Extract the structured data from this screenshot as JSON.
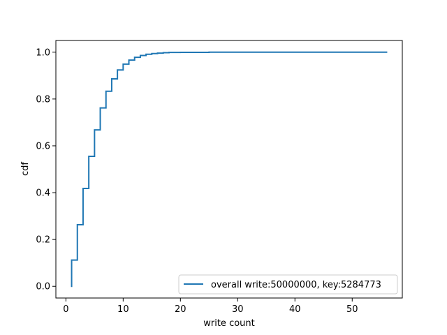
{
  "chart_data": {
    "type": "line",
    "step": "post",
    "xlabel": "write count",
    "ylabel": "cdf",
    "xlim": [
      -1.75,
      58.75
    ],
    "ylim": [
      -0.05,
      1.05
    ],
    "x_ticks": [
      {
        "value": 0,
        "label": "0"
      },
      {
        "value": 10,
        "label": "10"
      },
      {
        "value": 20,
        "label": "20"
      },
      {
        "value": 30,
        "label": "30"
      },
      {
        "value": 40,
        "label": "40"
      },
      {
        "value": 50,
        "label": "50"
      }
    ],
    "y_ticks": [
      {
        "value": 0.0,
        "label": "0.0"
      },
      {
        "value": 0.2,
        "label": "0.2"
      },
      {
        "value": 0.4,
        "label": "0.4"
      },
      {
        "value": 0.6,
        "label": "0.6"
      },
      {
        "value": 0.8,
        "label": "0.8"
      },
      {
        "value": 1.0,
        "label": "1.0"
      }
    ],
    "grid": false,
    "legend_position": "lower-right",
    "series": [
      {
        "name": "overall write:50000000, key:5284773",
        "color": "#1f77b4",
        "x": [
          1,
          1,
          2,
          3,
          4,
          5,
          6,
          7,
          8,
          9,
          10,
          11,
          12,
          13,
          14,
          15,
          16,
          17,
          18,
          20,
          25,
          56
        ],
        "y": [
          0.0,
          0.112,
          0.263,
          0.418,
          0.555,
          0.668,
          0.762,
          0.833,
          0.886,
          0.924,
          0.949,
          0.966,
          0.978,
          0.986,
          0.991,
          0.994,
          0.996,
          0.998,
          0.999,
          0.9995,
          1.0,
          1.0
        ]
      }
    ]
  }
}
